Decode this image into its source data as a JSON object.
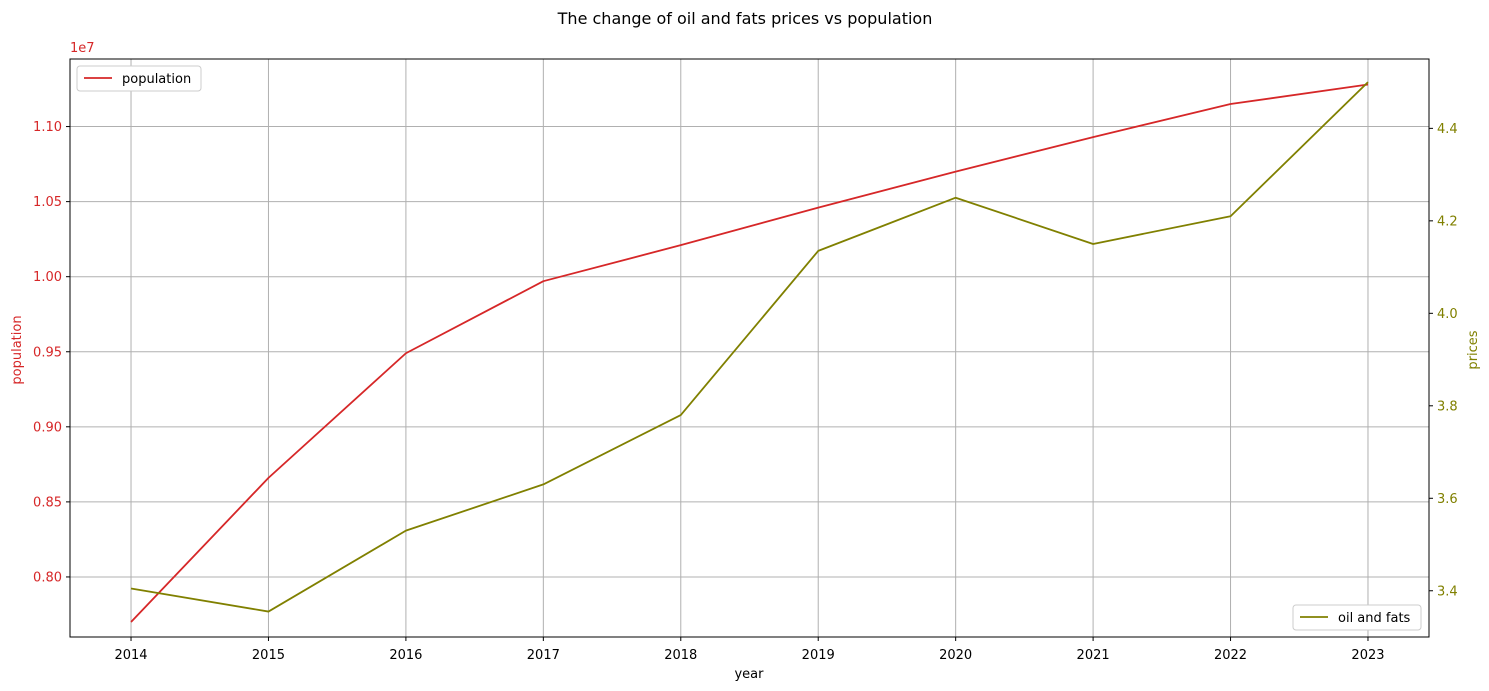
{
  "chart_data": {
    "type": "line",
    "title": "The change of oil and fats prices vs population",
    "xlabel": "year",
    "x": [
      2014,
      2015,
      2016,
      2017,
      2018,
      2019,
      2020,
      2021,
      2022,
      2023
    ],
    "xticks": [
      "2014",
      "2015",
      "2016",
      "2017",
      "2018",
      "2019",
      "2020",
      "2021",
      "2022",
      "2023"
    ],
    "grid": true,
    "left_axis": {
      "label": "population",
      "color": "#d62728",
      "scale_label": "1e7",
      "ylim": [
        7600000.0,
        11450000.0
      ],
      "ticks": [
        8000000.0,
        8500000.0,
        9000000.0,
        9500000.0,
        10000000.0,
        10500000.0,
        11000000.0
      ],
      "tick_labels": [
        "0.80",
        "0.85",
        "0.90",
        "0.95",
        "1.00",
        "1.05",
        "1.10"
      ]
    },
    "right_axis": {
      "label": "prices",
      "color": "#808000",
      "ylim": [
        3.3,
        4.55
      ],
      "ticks": [
        3.4,
        3.6,
        3.8,
        4.0,
        4.2,
        4.4
      ],
      "tick_labels": [
        "3.4",
        "3.6",
        "3.8",
        "4.0",
        "4.2",
        "4.4"
      ]
    },
    "series": [
      {
        "name": "population",
        "axis": "left",
        "color": "#d62728",
        "values": [
          7700000.0,
          8660000.0,
          9490000.0,
          9970000.0,
          10210000.0,
          10460000.0,
          10700000.0,
          10930000.0,
          11150000.0,
          11280000.0
        ],
        "legend": "upper left"
      },
      {
        "name": "oil and fats",
        "axis": "right",
        "color": "#808000",
        "values": [
          3.405,
          3.355,
          3.53,
          3.63,
          3.78,
          4.135,
          4.25,
          4.15,
          4.21,
          4.5
        ],
        "legend": "lower right"
      }
    ]
  }
}
